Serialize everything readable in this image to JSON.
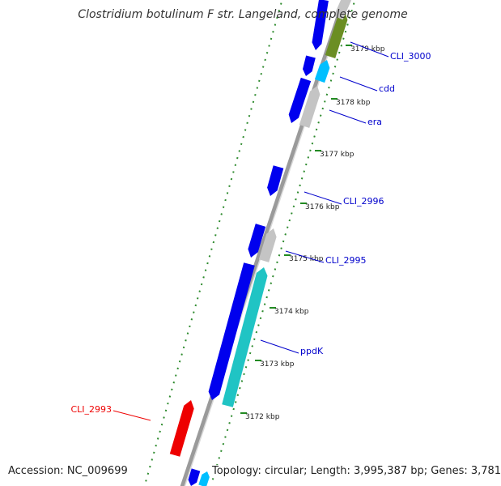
{
  "title": "Clostridium botulinum F str. Langeland, complete genome",
  "footer": {
    "accession": "Accession: NC_009699",
    "summary": "Topology: circular; Length: 3,995,387 bp; Genes: 3,781"
  },
  "colors": {
    "backbone": "#888888",
    "cds_blue": "#0000ee",
    "cds_grey": "#c4c4c4",
    "cds_olive": "#6b8e23",
    "cds_skyblue": "#00bfff",
    "cds_teal": "#20c4c4",
    "cds_red": "#ee0000",
    "tick_green": "#228b22",
    "label_blue": "#0000cc",
    "label_red": "#ee0000"
  },
  "ticks": [
    {
      "label": "3179 kbp",
      "major": true
    },
    {
      "label": "3178 kbp",
      "major": true
    },
    {
      "label": "3177 kbp",
      "major": true
    },
    {
      "label": "3176 kbp",
      "major": true
    },
    {
      "label": "3175 kbp",
      "major": true
    },
    {
      "label": "3174 kbp",
      "major": true
    },
    {
      "label": "3173 kbp",
      "major": true
    },
    {
      "label": "3172 kbp",
      "major": true
    }
  ],
  "gene_labels": [
    {
      "text": "CLI_3000",
      "color": "label_blue"
    },
    {
      "text": "cdd",
      "color": "label_blue"
    },
    {
      "text": "era",
      "color": "label_blue"
    },
    {
      "text": "CLI_2996",
      "color": "label_blue"
    },
    {
      "text": "CLI_2995",
      "color": "label_blue"
    },
    {
      "text": "ppdK",
      "color": "label_blue"
    },
    {
      "text": "CLI_2993",
      "color": "label_red"
    }
  ]
}
